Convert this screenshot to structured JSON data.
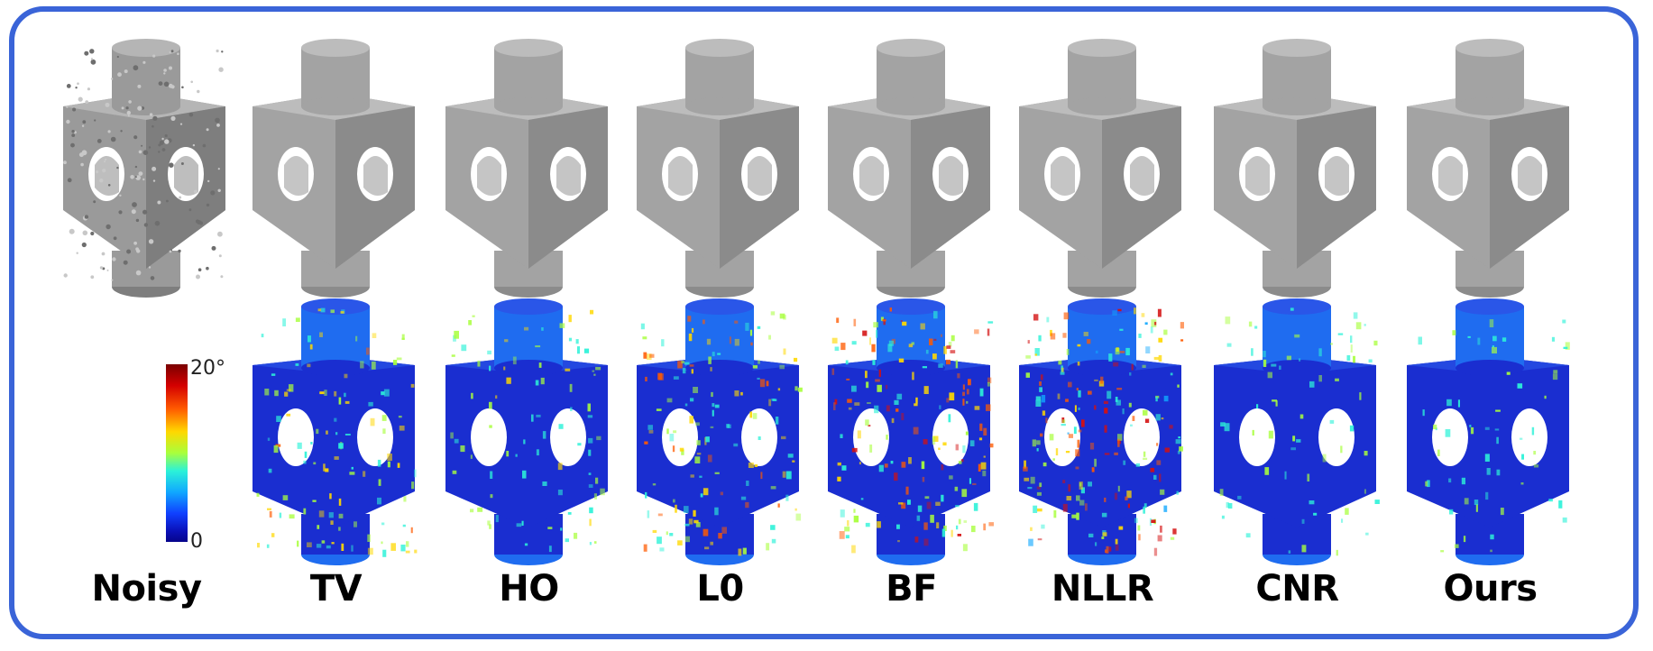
{
  "methods": [
    "Noisy",
    "TV",
    "HO",
    "L0",
    "BF",
    "NLLR",
    "CNR",
    "Ours"
  ],
  "colorbar": {
    "max_label": "20°",
    "min_label": "0"
  },
  "colors": {
    "frame": "#3a64d8",
    "mesh_gray": "#a8a8a8",
    "error_low": "#1a2ed0",
    "error_high": "#d41010"
  },
  "rows": [
    "rendered-mesh",
    "error-map"
  ],
  "error_level": {
    "TV": 0.35,
    "HO": 0.2,
    "L0": 0.45,
    "BF": 0.6,
    "NLLR": 0.7,
    "CNR": 0.12,
    "Ours": 0.08
  }
}
